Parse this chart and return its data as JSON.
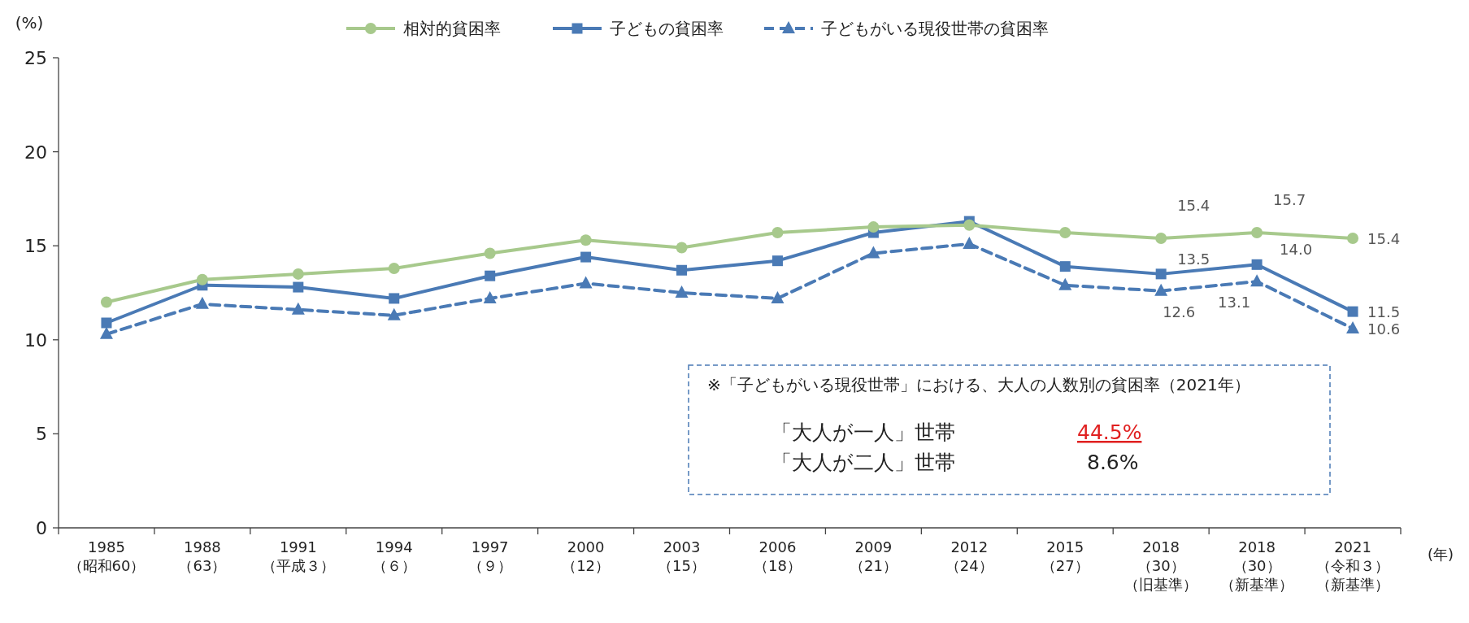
{
  "chart_data": {
    "type": "line",
    "categories": [
      "1985\n（昭和60）",
      "1988\n（63）",
      "1991\n（平成３）",
      "1994\n（６）",
      "1997\n（９）",
      "2000\n（12）",
      "2003\n（15）",
      "2006\n（18）",
      "2009\n（21）",
      "2012\n（24）",
      "2015\n（27）",
      "2018\n（30）（旧基準）",
      "2018\n（30）（新基準）",
      "2021\n（令和３）（新基準）"
    ],
    "series": [
      {
        "name": "相対的貧困率",
        "color": "#a7c98c",
        "marker": "circle",
        "line_style": "solid",
        "values": [
          12.0,
          13.2,
          13.5,
          13.8,
          14.6,
          15.3,
          14.9,
          15.7,
          16.0,
          16.1,
          15.7,
          15.4,
          15.7,
          15.4
        ],
        "value_labels": [
          null,
          null,
          null,
          null,
          null,
          null,
          null,
          null,
          null,
          null,
          null,
          "15.4",
          "15.7",
          "15.4"
        ]
      },
      {
        "name": "子どもの貧困率",
        "color": "#4a7ab5",
        "marker": "square",
        "line_style": "solid",
        "values": [
          10.9,
          12.9,
          12.8,
          12.2,
          13.4,
          14.4,
          13.7,
          14.2,
          15.7,
          16.3,
          13.9,
          13.5,
          14.0,
          11.5
        ],
        "value_labels": [
          null,
          null,
          null,
          null,
          null,
          null,
          null,
          null,
          null,
          null,
          null,
          "13.5",
          "14.0",
          "11.5"
        ]
      },
      {
        "name": "子どもがいる現役世帯の貧困率",
        "color": "#4a7ab5",
        "marker": "triangle",
        "line_style": "dashed",
        "values": [
          10.3,
          11.9,
          11.6,
          11.3,
          12.2,
          13.0,
          12.5,
          12.2,
          14.6,
          15.1,
          12.9,
          12.6,
          13.1,
          10.6
        ],
        "value_labels": [
          null,
          null,
          null,
          null,
          null,
          null,
          null,
          null,
          null,
          null,
          null,
          "12.6",
          "13.1",
          "10.6"
        ]
      }
    ],
    "ylabel": "(%)",
    "xlabel": "(年)",
    "ylim": [
      0,
      25
    ],
    "yticks": [
      0,
      5,
      10,
      15,
      20,
      25
    ],
    "grid": false,
    "legend": "top",
    "annotations": [
      "※「子どもがいる現役世帯」における、大人の人数別の貧困率（2021年）",
      "「大人が一人」世帯",
      "44.5%",
      "「大人が二人」世帯",
      "8.6%"
    ]
  }
}
